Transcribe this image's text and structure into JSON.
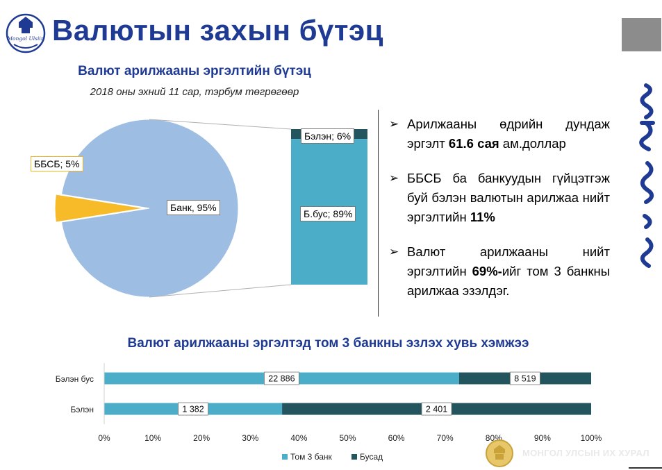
{
  "header": {
    "title": "Валютын захын бүтэц"
  },
  "colors": {
    "title_blue": "#1f3a93",
    "pie_bank": "#9dbde3",
    "pie_bbsb": "#f7bb2a",
    "bar_noncash": "#4badc8",
    "bar_cash": "#23555e",
    "top3": "#4badc8",
    "other": "#23555e"
  },
  "chart_data": [
    {
      "type": "pie",
      "title": "Валют арилжааны эргэлтийн бүтэц",
      "subtitle": "2018 оны эхний 11 сар, тэрбум төгрөгөөр",
      "slices": [
        {
          "label": "Банк",
          "value": 95
        },
        {
          "label": "ББСБ",
          "value": 5
        }
      ],
      "slice_labels": [
        "Банк, 95%",
        "ББСБ; 5%"
      ],
      "breakdown": {
        "of": "Банк",
        "type": "stacked-bar",
        "segments": [
          {
            "label": "Б.бус",
            "value": 89
          },
          {
            "label": "Бэлэн",
            "value": 6
          }
        ],
        "segment_labels": [
          "Б.бус; 89%",
          "Бэлэн; 6%"
        ]
      }
    },
    {
      "type": "bar",
      "orientation": "horizontal",
      "stacked": "percent",
      "title": "Валют арилжааны эргэлтэд том 3 банкны эзлэх хувь хэмжээ",
      "categories": [
        "Бэлэн бус",
        "Бэлэн"
      ],
      "series": [
        {
          "name": "Том 3 банк",
          "values": [
            22886,
            1382
          ],
          "labels": [
            "22 886",
            "1 382"
          ]
        },
        {
          "name": "Бусад",
          "values": [
            8519,
            2401
          ],
          "labels": [
            "8 519",
            "2 401"
          ]
        }
      ],
      "xticks": [
        "0%",
        "10%",
        "20%",
        "30%",
        "40%",
        "50%",
        "60%",
        "70%",
        "80%",
        "90%",
        "100%"
      ],
      "xlim": [
        0,
        100
      ],
      "grid": false,
      "legend": "bottom"
    }
  ],
  "bullets": [
    {
      "text": "Арилжааны өдрийн дундаж эргэлт ",
      "bold": "61.6 сая",
      "tail": " ам.доллар"
    },
    {
      "text": "ББСБ ба банкуудын гүйцэтгэж буй бэлэн валютын арилжаа нийт эргэлтийн ",
      "bold": "11%",
      "tail": ""
    },
    {
      "text": "Валют арилжааны нийт эргэлтийн ",
      "bold": "69%-",
      "tail": "ийг том 3 банкны арилжаа эзэлдэг."
    }
  ],
  "footer": {
    "text": "МОНГОЛ УЛСЫН ИХ ХУРАЛ"
  }
}
